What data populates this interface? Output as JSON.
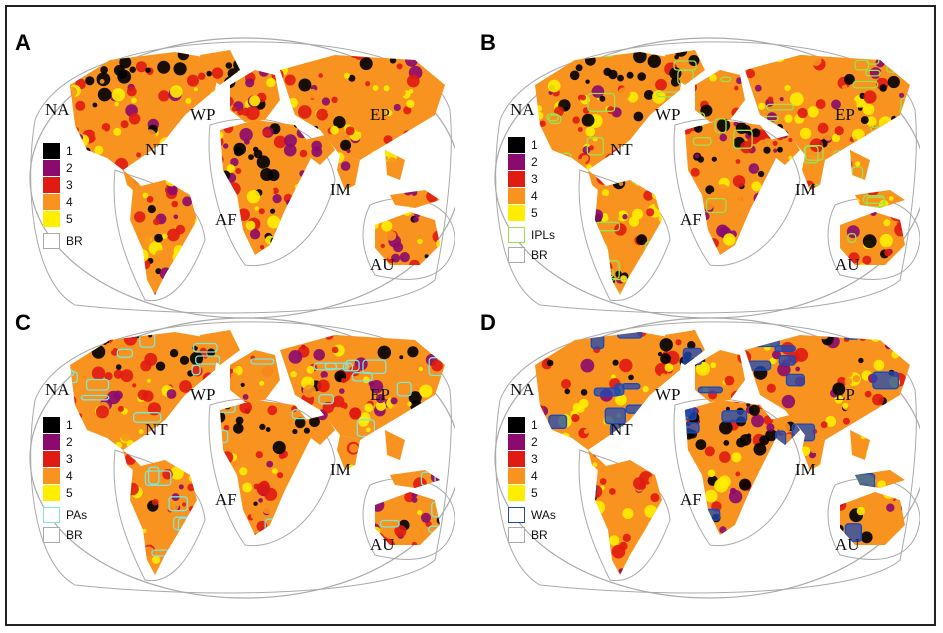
{
  "colors": {
    "class_1": "#000000",
    "class_2": "#8b0a6e",
    "class_3": "#e01b12",
    "class_4": "#f7931e",
    "class_5": "#ffee00",
    "BR_outline": "#aaaaaa",
    "IPLs_overlay": "#9be34a",
    "PAs_overlay": "#7ee8d8",
    "WAs_overlay": "#1c49b8"
  },
  "region_labels": [
    "NA",
    "NT",
    "WP",
    "EP",
    "AF",
    "IM",
    "AU"
  ],
  "legend_classes": [
    "1",
    "2",
    "3",
    "4",
    "5"
  ],
  "panels": [
    {
      "id": "A",
      "overlay_label": null,
      "overlay": "none",
      "br_label": "BR"
    },
    {
      "id": "B",
      "overlay_label": "IPLs",
      "overlay": "IPLs",
      "br_label": "BR"
    },
    {
      "id": "C",
      "overlay_label": "PAs",
      "overlay": "PAs",
      "br_label": "BR"
    },
    {
      "id": "D",
      "overlay_label": "WAs",
      "overlay": "WAs",
      "br_label": "BR"
    }
  ]
}
